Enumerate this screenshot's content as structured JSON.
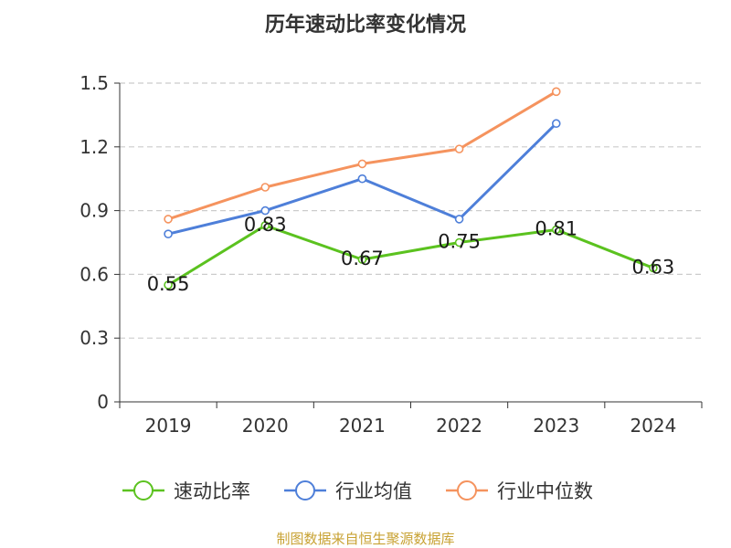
{
  "chart_data": {
    "type": "line",
    "title": "历年速动比率变化情况",
    "categories": [
      "2019",
      "2020",
      "2021",
      "2022",
      "2023",
      "2024"
    ],
    "ylim": [
      0,
      1.5
    ],
    "yticks": [
      "0",
      "0.3",
      "0.6",
      "0.9",
      "1.2",
      "1.5"
    ],
    "grid": true,
    "legend_position": "bottom",
    "series": [
      {
        "name": "速动比率",
        "color": "#5bc21f",
        "values": [
          0.55,
          0.83,
          0.67,
          0.75,
          0.81,
          0.63
        ],
        "labels": [
          "0.55",
          "0.83",
          "0.67",
          "0.75",
          "0.81",
          "0.63"
        ]
      },
      {
        "name": "行业均值",
        "color": "#4e7fd9",
        "values": [
          0.79,
          0.9,
          1.05,
          0.86,
          1.31,
          null
        ]
      },
      {
        "name": "行业中位数",
        "color": "#f5935e",
        "values": [
          0.86,
          1.01,
          1.12,
          1.19,
          1.46,
          null
        ]
      }
    ]
  },
  "source": "制图数据来自恒生聚源数据库"
}
